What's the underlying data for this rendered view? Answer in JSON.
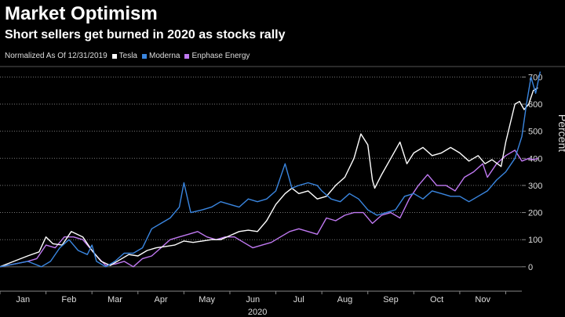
{
  "header": {
    "title": "Market Optimism",
    "subtitle": "Short sellers get burned in 2020 as stocks rally"
  },
  "legend": {
    "note": "Normalized As Of 12/31/2019",
    "entries": [
      "Tesla",
      "Moderna",
      "Enphase Energy"
    ]
  },
  "chart_data": {
    "type": "line",
    "title": "Market Optimism",
    "subtitle": "Short sellers get burned in 2020 as stocks rally",
    "xlabel": "2020",
    "ylabel": "Percent",
    "ylim": [
      -90,
      730
    ],
    "yticks": [
      0,
      100,
      200,
      300,
      400,
      500,
      600,
      700
    ],
    "grid": "horizontal dotted",
    "x_unit": "month index (0 = Jan 1, 2020)",
    "xlim": [
      0,
      11.35
    ],
    "month_labels": [
      "Jan",
      "Feb",
      "Mar",
      "Apr",
      "May",
      "Jun",
      "Jul",
      "Aug",
      "Sep",
      "Oct",
      "Nov"
    ],
    "series": [
      {
        "name": "Tesla",
        "color": "#ffffff",
        "points": [
          [
            0,
            0
          ],
          [
            0.3,
            20
          ],
          [
            0.6,
            40
          ],
          [
            0.85,
            55
          ],
          [
            1.0,
            110
          ],
          [
            1.15,
            85
          ],
          [
            1.35,
            80
          ],
          [
            1.55,
            130
          ],
          [
            1.8,
            110
          ],
          [
            2.0,
            60
          ],
          [
            2.2,
            20
          ],
          [
            2.4,
            5
          ],
          [
            2.6,
            25
          ],
          [
            2.8,
            45
          ],
          [
            3.0,
            40
          ],
          [
            3.2,
            60
          ],
          [
            3.4,
            70
          ],
          [
            3.6,
            75
          ],
          [
            3.8,
            80
          ],
          [
            4.0,
            95
          ],
          [
            4.2,
            90
          ],
          [
            4.4,
            95
          ],
          [
            4.6,
            100
          ],
          [
            4.8,
            100
          ],
          [
            5.0,
            115
          ],
          [
            5.2,
            130
          ],
          [
            5.4,
            135
          ],
          [
            5.6,
            130
          ],
          [
            5.8,
            170
          ],
          [
            6.0,
            230
          ],
          [
            6.2,
            270
          ],
          [
            6.35,
            290
          ],
          [
            6.5,
            270
          ],
          [
            6.7,
            280
          ],
          [
            6.9,
            250
          ],
          [
            7.1,
            260
          ],
          [
            7.3,
            300
          ],
          [
            7.5,
            330
          ],
          [
            7.7,
            400
          ],
          [
            7.85,
            490
          ],
          [
            8.0,
            450
          ],
          [
            8.1,
            320
          ],
          [
            8.15,
            290
          ],
          [
            8.3,
            340
          ],
          [
            8.5,
            400
          ],
          [
            8.7,
            460
          ],
          [
            8.85,
            380
          ],
          [
            9.0,
            420
          ],
          [
            9.2,
            440
          ],
          [
            9.4,
            410
          ],
          [
            9.6,
            420
          ],
          [
            9.8,
            440
          ],
          [
            10.0,
            420
          ],
          [
            10.2,
            390
          ],
          [
            10.4,
            410
          ],
          [
            10.55,
            380
          ],
          [
            10.7,
            395
          ],
          [
            10.9,
            370
          ],
          [
            11.0,
            460
          ],
          [
            11.2,
            600
          ],
          [
            11.3,
            610
          ],
          [
            11.4,
            580
          ],
          [
            11.5,
            600
          ],
          [
            11.6,
            650
          ],
          [
            11.7,
            660
          ]
        ]
      },
      {
        "name": "Moderna",
        "color": "#3a86e0",
        "points": [
          [
            0,
            0
          ],
          [
            0.3,
            10
          ],
          [
            0.6,
            20
          ],
          [
            0.9,
            0
          ],
          [
            1.1,
            20
          ],
          [
            1.3,
            70
          ],
          [
            1.5,
            100
          ],
          [
            1.7,
            60
          ],
          [
            1.9,
            45
          ],
          [
            2.0,
            80
          ],
          [
            2.1,
            20
          ],
          [
            2.3,
            0
          ],
          [
            2.5,
            20
          ],
          [
            2.7,
            50
          ],
          [
            2.9,
            50
          ],
          [
            3.1,
            70
          ],
          [
            3.3,
            140
          ],
          [
            3.5,
            160
          ],
          [
            3.7,
            180
          ],
          [
            3.9,
            220
          ],
          [
            4.0,
            310
          ],
          [
            4.15,
            200
          ],
          [
            4.4,
            210
          ],
          [
            4.6,
            220
          ],
          [
            4.8,
            240
          ],
          [
            5.0,
            230
          ],
          [
            5.2,
            220
          ],
          [
            5.4,
            250
          ],
          [
            5.6,
            240
          ],
          [
            5.8,
            250
          ],
          [
            6.0,
            280
          ],
          [
            6.2,
            380
          ],
          [
            6.35,
            290
          ],
          [
            6.5,
            300
          ],
          [
            6.7,
            310
          ],
          [
            6.9,
            300
          ],
          [
            7.0,
            280
          ],
          [
            7.2,
            250
          ],
          [
            7.4,
            240
          ],
          [
            7.6,
            270
          ],
          [
            7.8,
            250
          ],
          [
            8.0,
            210
          ],
          [
            8.2,
            190
          ],
          [
            8.4,
            200
          ],
          [
            8.6,
            210
          ],
          [
            8.8,
            260
          ],
          [
            9.0,
            270
          ],
          [
            9.2,
            250
          ],
          [
            9.4,
            280
          ],
          [
            9.6,
            270
          ],
          [
            9.8,
            260
          ],
          [
            10.0,
            260
          ],
          [
            10.2,
            240
          ],
          [
            10.4,
            260
          ],
          [
            10.6,
            280
          ],
          [
            10.8,
            320
          ],
          [
            11.0,
            350
          ],
          [
            11.2,
            400
          ],
          [
            11.35,
            480
          ],
          [
            11.45,
            600
          ],
          [
            11.55,
            700
          ],
          [
            11.65,
            640
          ],
          [
            11.75,
            720
          ]
        ]
      },
      {
        "name": "Enphase Energy",
        "color": "#c079f2",
        "points": [
          [
            0,
            0
          ],
          [
            0.3,
            10
          ],
          [
            0.6,
            20
          ],
          [
            0.8,
            30
          ],
          [
            1.0,
            80
          ],
          [
            1.2,
            70
          ],
          [
            1.4,
            110
          ],
          [
            1.6,
            110
          ],
          [
            1.8,
            100
          ],
          [
            1.95,
            70
          ],
          [
            2.1,
            40
          ],
          [
            2.3,
            5
          ],
          [
            2.5,
            10
          ],
          [
            2.7,
            20
          ],
          [
            2.9,
            0
          ],
          [
            3.1,
            30
          ],
          [
            3.3,
            40
          ],
          [
            3.5,
            70
          ],
          [
            3.7,
            100
          ],
          [
            3.9,
            110
          ],
          [
            4.1,
            120
          ],
          [
            4.3,
            130
          ],
          [
            4.5,
            110
          ],
          [
            4.7,
            100
          ],
          [
            4.9,
            110
          ],
          [
            5.1,
            110
          ],
          [
            5.3,
            90
          ],
          [
            5.5,
            70
          ],
          [
            5.7,
            80
          ],
          [
            5.9,
            90
          ],
          [
            6.1,
            110
          ],
          [
            6.3,
            130
          ],
          [
            6.5,
            140
          ],
          [
            6.7,
            130
          ],
          [
            6.9,
            120
          ],
          [
            7.1,
            180
          ],
          [
            7.3,
            170
          ],
          [
            7.5,
            190
          ],
          [
            7.7,
            200
          ],
          [
            7.9,
            200
          ],
          [
            8.1,
            160
          ],
          [
            8.3,
            190
          ],
          [
            8.5,
            200
          ],
          [
            8.7,
            180
          ],
          [
            8.9,
            250
          ],
          [
            9.1,
            300
          ],
          [
            9.3,
            340
          ],
          [
            9.5,
            300
          ],
          [
            9.7,
            300
          ],
          [
            9.9,
            280
          ],
          [
            10.1,
            330
          ],
          [
            10.3,
            350
          ],
          [
            10.5,
            380
          ],
          [
            10.6,
            330
          ],
          [
            10.8,
            380
          ],
          [
            11.0,
            410
          ],
          [
            11.2,
            430
          ],
          [
            11.35,
            390
          ],
          [
            11.5,
            400
          ],
          [
            11.6,
            395
          ],
          [
            11.7,
            400
          ]
        ]
      }
    ]
  }
}
